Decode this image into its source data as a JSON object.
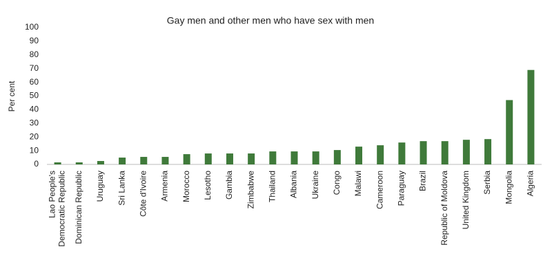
{
  "chart_data": {
    "type": "bar",
    "title": "Gay men and other men who have sex with men",
    "y_label": "Per cent",
    "categories": [
      "Lao People's\nDemocratic Republic",
      "Dominican Republic",
      "Uruguay",
      "Sri Lanka",
      "Côte d'Ivoire",
      "Armenia",
      "Morocco",
      "Lesotho",
      "Gambia",
      "Zimbabwe",
      "Thailand",
      "Albania",
      "Ukraine",
      "Congo",
      "Malawi",
      "Cameroon",
      "Paraguay",
      "Brazil",
      "Republic of Moldova",
      "United Kingdom",
      "Serbia",
      "Mongolia",
      "Algeria"
    ],
    "values": [
      1.5,
      1.5,
      2.5,
      5,
      5.5,
      5.5,
      7.5,
      8,
      8,
      8,
      9.5,
      9.5,
      9.5,
      10.5,
      13,
      14,
      16,
      17,
      17,
      18,
      18.5,
      47,
      69
    ],
    "color": "#3f7a3a",
    "ylim": [
      0,
      100
    ],
    "yticks": [
      0,
      10,
      20,
      30,
      40,
      50,
      60,
      70,
      80,
      90,
      100
    ],
    "grid": false
  }
}
